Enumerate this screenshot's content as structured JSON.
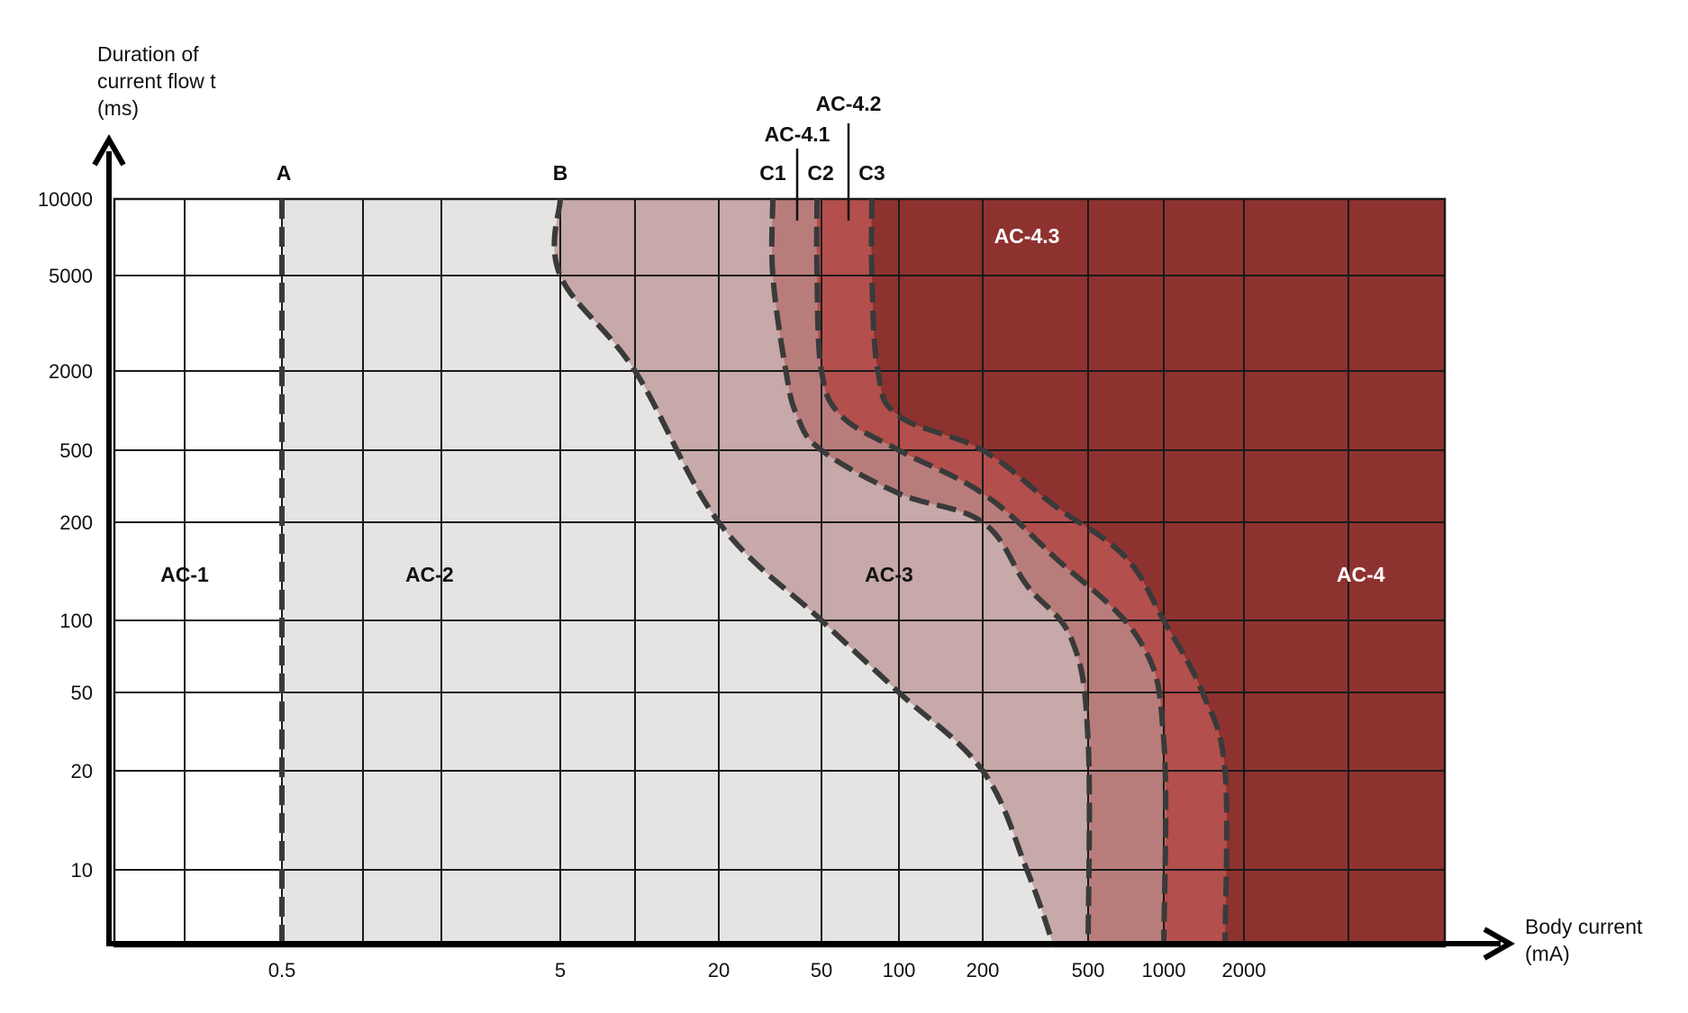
{
  "chart_data": {
    "type": "area",
    "title": "",
    "xlabel": [
      "Body current",
      "(mA)"
    ],
    "ylabel": [
      "Duration of",
      "current flow t",
      "(ms)"
    ],
    "x_scale": "log",
    "y_scale": "log",
    "xlim": [
      0.1,
      10000
    ],
    "ylim": [
      5,
      10000
    ],
    "x_ticks": [
      {
        "value": 0.5,
        "label": "0.5"
      },
      {
        "value": 5,
        "label": "5"
      },
      {
        "value": 20,
        "label": "20"
      },
      {
        "value": 50,
        "label": "50"
      },
      {
        "value": 100,
        "label": "100"
      },
      {
        "value": 200,
        "label": "200"
      },
      {
        "value": 500,
        "label": "500"
      },
      {
        "value": 1000,
        "label": "1000"
      },
      {
        "value": 2000,
        "label": "2000"
      }
    ],
    "y_ticks": [
      {
        "value": 10000,
        "label": "10000"
      },
      {
        "value": 5000,
        "label": "5000"
      },
      {
        "value": 2000,
        "label": "2000"
      },
      {
        "value": 500,
        "label": "500"
      },
      {
        "value": 200,
        "label": "200"
      },
      {
        "value": 100,
        "label": "100"
      },
      {
        "value": 50,
        "label": "50"
      },
      {
        "value": 20,
        "label": "20"
      },
      {
        "value": 10,
        "label": "10"
      }
    ],
    "grid": true,
    "colors": {
      "ac1": "#ffffff",
      "ac2": "#e6e4e3",
      "ac3": "#c6a9a8",
      "ac41": "#b87d7b",
      "ac42": "#b34f4c",
      "ac43": "#8e3230",
      "boundary": "#3a3a3a"
    },
    "curves": [
      {
        "name": "A",
        "points": [
          [
            0.5,
            10000
          ],
          [
            0.5,
            5
          ]
        ]
      },
      {
        "name": "B",
        "points": [
          [
            5,
            10000
          ],
          [
            5,
            5000
          ],
          [
            10,
            2000
          ],
          [
            20,
            200
          ],
          [
            50,
            100
          ],
          [
            100,
            50
          ],
          [
            200,
            20
          ],
          [
            300,
            10
          ],
          [
            400,
            5
          ]
        ]
      },
      {
        "name": "C1",
        "points": [
          [
            30,
            10000
          ],
          [
            30,
            5000
          ],
          [
            35,
            2000
          ],
          [
            40,
            1000
          ],
          [
            50,
            500
          ],
          [
            100,
            300
          ],
          [
            200,
            200
          ],
          [
            300,
            120
          ],
          [
            450,
            80
          ],
          [
            500,
            30
          ],
          [
            500,
            5
          ]
        ]
      },
      {
        "name": "C2",
        "points": [
          [
            48,
            10000
          ],
          [
            48,
            5000
          ],
          [
            50,
            2000
          ],
          [
            60,
            1000
          ],
          [
            100,
            500
          ],
          [
            200,
            300
          ],
          [
            400,
            150
          ],
          [
            800,
            80
          ],
          [
            1000,
            30
          ],
          [
            1000,
            5
          ]
        ]
      },
      {
        "name": "C3",
        "points": [
          [
            75,
            10000
          ],
          [
            75,
            5000
          ],
          [
            80,
            2000
          ],
          [
            100,
            1000
          ],
          [
            200,
            500
          ],
          [
            400,
            250
          ],
          [
            700,
            150
          ],
          [
            1000,
            100
          ],
          [
            1500,
            50
          ],
          [
            1800,
            20
          ],
          [
            1800,
            5
          ]
        ]
      }
    ],
    "annotations": {
      "zones": [
        {
          "label": "AC-1",
          "x": 0.2,
          "y": 130
        },
        {
          "label": "AC-2",
          "x": 1.8,
          "y": 130
        },
        {
          "label": "AC-3",
          "x": 90,
          "y": 130
        },
        {
          "label": "AC-4",
          "x": 3500,
          "y": 130
        },
        {
          "label": "AC-4.3",
          "x": 300,
          "y": 7300
        }
      ],
      "curve_labels": [
        {
          "label": "A",
          "x": 0.5
        },
        {
          "label": "B",
          "x": 5
        },
        {
          "label": "C1",
          "x": 30
        },
        {
          "label": "C2",
          "x": 48
        },
        {
          "label": "C3",
          "x": 75
        }
      ],
      "subzone_labels": [
        {
          "label": "AC-4.1",
          "x": 40
        },
        {
          "label": "AC-4.2",
          "x": 64
        }
      ]
    }
  }
}
